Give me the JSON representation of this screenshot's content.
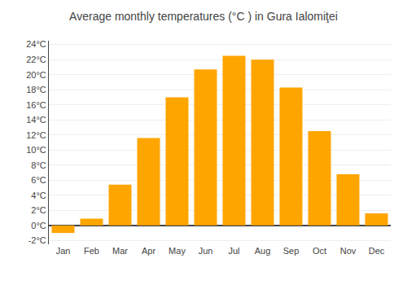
{
  "chart_data": {
    "type": "bar",
    "title": "Average monthly temperatures (°C ) in Gura Ialomiţei",
    "categories": [
      "Jan",
      "Feb",
      "Mar",
      "Apr",
      "May",
      "Jun",
      "Jul",
      "Aug",
      "Sep",
      "Oct",
      "Nov",
      "Dec"
    ],
    "values": [
      -1.0,
      0.9,
      5.4,
      11.6,
      17.0,
      20.7,
      22.5,
      22.0,
      18.3,
      12.5,
      6.8,
      1.6
    ],
    "color": "#FFA500",
    "ylim": [
      -2.5,
      24.5
    ],
    "yticks": [
      {
        "value": -2,
        "label": "-2°C"
      },
      {
        "value": 0,
        "label": "0°C"
      },
      {
        "value": 2,
        "label": "2°C"
      },
      {
        "value": 4,
        "label": "4°C"
      },
      {
        "value": 6,
        "label": "6°C"
      },
      {
        "value": 8,
        "label": "8°C"
      },
      {
        "value": 10,
        "label": "10°C"
      },
      {
        "value": 12,
        "label": "12°C"
      },
      {
        "value": 14,
        "label": "14°C"
      },
      {
        "value": 16,
        "label": "16°C"
      },
      {
        "value": 18,
        "label": "18°C"
      },
      {
        "value": 20,
        "label": "20°C"
      },
      {
        "value": 22,
        "label": "22°C"
      },
      {
        "value": 24,
        "label": "24°C"
      }
    ],
    "grid": true
  }
}
